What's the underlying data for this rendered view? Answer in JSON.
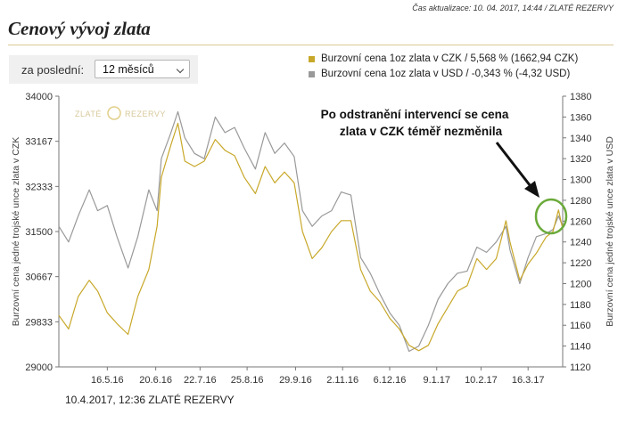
{
  "header": {
    "update_text": "Čas aktualizace: 10. 04. 2017, 14:44  /  ZLATÉ REZERVY",
    "title": "Cenový vývoj zlata"
  },
  "controls": {
    "period_label": "za poslední:",
    "period_value": "12 měsíců"
  },
  "watermark": "ZLATÉ REZERVY",
  "annotation": [
    "Po odstranění intervencí se cena",
    "zlata v CZK téměř nezměnila"
  ],
  "footer": "10.4.2017, 12:36 ZLATÉ REZERVY",
  "colors": {
    "czk": "#c8a82a",
    "usd": "#999999",
    "highlight": "#6aaa3a",
    "arrow": "#111111"
  },
  "chart_data": {
    "type": "line",
    "ylabel_left": "Burzovní cena jedné trojské unce zlata v CZK",
    "ylabel_right": "Burzovní cena jedné trojské unce zlata v USD",
    "y_left_ticks": [
      "34000",
      "33167",
      "32333",
      "31500",
      "30667",
      "29833",
      "29000"
    ],
    "y_left_range": [
      29000,
      34000
    ],
    "y_right_ticks": [
      "1380",
      "1360",
      "1340",
      "1320",
      "1300",
      "1280",
      "1260",
      "1240",
      "1220",
      "1200",
      "1180",
      "1160",
      "1140",
      "1120"
    ],
    "y_right_range": [
      1120,
      1380
    ],
    "x_ticks": [
      "16.5.16",
      "20.6.16",
      "22.7.16",
      "25.8.16",
      "29.9.16",
      "2.11.16",
      "6.12.16",
      "9.1.17",
      "10.2.17",
      "16.3.17"
    ],
    "x_range": [
      "2016-04-11",
      "2017-04-10"
    ],
    "grid": false,
    "series": [
      {
        "name": "Burzovní cena 1oz zlata v CZK / 5,568 % (1662,94 CZK)",
        "axis": "left",
        "points": [
          [
            "2016-04-11",
            29950
          ],
          [
            "2016-04-18",
            29700
          ],
          [
            "2016-04-25",
            30300
          ],
          [
            "2016-05-03",
            30600
          ],
          [
            "2016-05-09",
            30400
          ],
          [
            "2016-05-16",
            30000
          ],
          [
            "2016-05-23",
            29800
          ],
          [
            "2016-05-31",
            29600
          ],
          [
            "2016-06-07",
            30300
          ],
          [
            "2016-06-15",
            30800
          ],
          [
            "2016-06-21",
            31600
          ],
          [
            "2016-06-24",
            32500
          ],
          [
            "2016-07-01",
            33100
          ],
          [
            "2016-07-06",
            33500
          ],
          [
            "2016-07-11",
            32800
          ],
          [
            "2016-07-18",
            32700
          ],
          [
            "2016-07-25",
            32800
          ],
          [
            "2016-08-02",
            33200
          ],
          [
            "2016-08-09",
            33000
          ],
          [
            "2016-08-16",
            32900
          ],
          [
            "2016-08-23",
            32500
          ],
          [
            "2016-08-31",
            32200
          ],
          [
            "2016-09-07",
            32700
          ],
          [
            "2016-09-14",
            32400
          ],
          [
            "2016-09-21",
            32600
          ],
          [
            "2016-09-28",
            32400
          ],
          [
            "2016-10-04",
            31500
          ],
          [
            "2016-10-11",
            31000
          ],
          [
            "2016-10-18",
            31200
          ],
          [
            "2016-10-25",
            31500
          ],
          [
            "2016-11-01",
            31700
          ],
          [
            "2016-11-08",
            31700
          ],
          [
            "2016-11-15",
            30800
          ],
          [
            "2016-11-22",
            30400
          ],
          [
            "2016-11-29",
            30200
          ],
          [
            "2016-12-06",
            29900
          ],
          [
            "2016-12-13",
            29700
          ],
          [
            "2016-12-20",
            29400
          ],
          [
            "2016-12-27",
            29300
          ],
          [
            "2017-01-03",
            29400
          ],
          [
            "2017-01-10",
            29800
          ],
          [
            "2017-01-17",
            30100
          ],
          [
            "2017-01-24",
            30400
          ],
          [
            "2017-01-31",
            30500
          ],
          [
            "2017-02-07",
            31000
          ],
          [
            "2017-02-14",
            30800
          ],
          [
            "2017-02-21",
            31000
          ],
          [
            "2017-02-28",
            31700
          ],
          [
            "2017-03-03",
            31300
          ],
          [
            "2017-03-10",
            30600
          ],
          [
            "2017-03-16",
            30900
          ],
          [
            "2017-03-22",
            31100
          ],
          [
            "2017-03-29",
            31400
          ],
          [
            "2017-04-03",
            31500
          ],
          [
            "2017-04-07",
            31900
          ],
          [
            "2017-04-10",
            31550
          ]
        ]
      },
      {
        "name": "Burzovní cena 1oz zlata v USD / -0,343 % (-4,32 USD)",
        "axis": "right",
        "points": [
          [
            "2016-04-11",
            1255
          ],
          [
            "2016-04-18",
            1240
          ],
          [
            "2016-04-25",
            1265
          ],
          [
            "2016-05-03",
            1290
          ],
          [
            "2016-05-09",
            1270
          ],
          [
            "2016-05-16",
            1275
          ],
          [
            "2016-05-23",
            1245
          ],
          [
            "2016-05-31",
            1215
          ],
          [
            "2016-06-07",
            1245
          ],
          [
            "2016-06-15",
            1290
          ],
          [
            "2016-06-21",
            1270
          ],
          [
            "2016-06-24",
            1320
          ],
          [
            "2016-07-01",
            1345
          ],
          [
            "2016-07-06",
            1365
          ],
          [
            "2016-07-11",
            1340
          ],
          [
            "2016-07-18",
            1325
          ],
          [
            "2016-07-25",
            1320
          ],
          [
            "2016-08-02",
            1360
          ],
          [
            "2016-08-09",
            1345
          ],
          [
            "2016-08-16",
            1350
          ],
          [
            "2016-08-23",
            1330
          ],
          [
            "2016-08-31",
            1310
          ],
          [
            "2016-09-07",
            1345
          ],
          [
            "2016-09-14",
            1325
          ],
          [
            "2016-09-21",
            1335
          ],
          [
            "2016-09-28",
            1322
          ],
          [
            "2016-10-04",
            1270
          ],
          [
            "2016-10-11",
            1255
          ],
          [
            "2016-10-18",
            1265
          ],
          [
            "2016-10-25",
            1270
          ],
          [
            "2016-11-01",
            1288
          ],
          [
            "2016-11-08",
            1285
          ],
          [
            "2016-11-15",
            1225
          ],
          [
            "2016-11-22",
            1210
          ],
          [
            "2016-11-29",
            1190
          ],
          [
            "2016-12-06",
            1172
          ],
          [
            "2016-12-13",
            1160
          ],
          [
            "2016-12-20",
            1135
          ],
          [
            "2016-12-27",
            1140
          ],
          [
            "2017-01-03",
            1160
          ],
          [
            "2017-01-10",
            1185
          ],
          [
            "2017-01-17",
            1200
          ],
          [
            "2017-01-24",
            1210
          ],
          [
            "2017-01-31",
            1212
          ],
          [
            "2017-02-07",
            1235
          ],
          [
            "2017-02-14",
            1230
          ],
          [
            "2017-02-21",
            1240
          ],
          [
            "2017-02-28",
            1255
          ],
          [
            "2017-03-03",
            1232
          ],
          [
            "2017-03-10",
            1200
          ],
          [
            "2017-03-16",
            1225
          ],
          [
            "2017-03-22",
            1245
          ],
          [
            "2017-03-29",
            1248
          ],
          [
            "2017-04-03",
            1252
          ],
          [
            "2017-04-07",
            1265
          ],
          [
            "2017-04-10",
            1255
          ]
        ]
      }
    ]
  }
}
